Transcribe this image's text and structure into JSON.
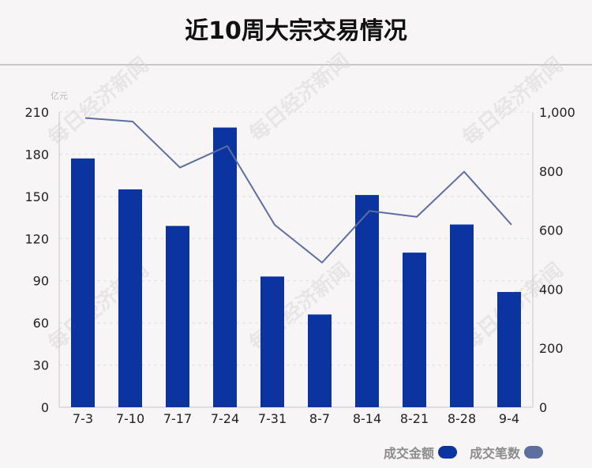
{
  "title": "近10周大宗交易情况",
  "watermark": "每日经济新闻",
  "colors": {
    "bar": "#0c34a0",
    "line": "#5d6f9e",
    "grid": "#e2dde0",
    "axis": "#c8c6c8",
    "background": "#f8f5f7"
  },
  "legend": {
    "amount_label": "成交金额",
    "count_label": "成交笔数"
  },
  "chart_data": {
    "type": "bar+line",
    "categories": [
      "7-3",
      "7-10",
      "7-17",
      "7-24",
      "7-31",
      "8-7",
      "8-14",
      "8-21",
      "8-28",
      "9-4"
    ],
    "series": [
      {
        "name": "成交金额",
        "type": "bar",
        "axis": "left",
        "values": [
          177,
          155,
          129,
          199,
          93,
          66,
          151,
          110,
          130,
          82
        ]
      },
      {
        "name": "成交笔数",
        "type": "line",
        "axis": "right",
        "values": [
          980,
          968,
          812,
          885,
          618,
          490,
          665,
          645,
          798,
          618
        ]
      }
    ],
    "y_left": {
      "unit": "亿元",
      "ylim": [
        0,
        210
      ],
      "ticks": [
        "0",
        "30",
        "60",
        "90",
        "120",
        "150",
        "180",
        "210"
      ]
    },
    "y_right": {
      "ylim": [
        0,
        1000
      ],
      "ticks": [
        "0",
        "200",
        "400",
        "600",
        "800",
        "1,000"
      ]
    },
    "grid": true,
    "legend_position": "bottom-right"
  }
}
